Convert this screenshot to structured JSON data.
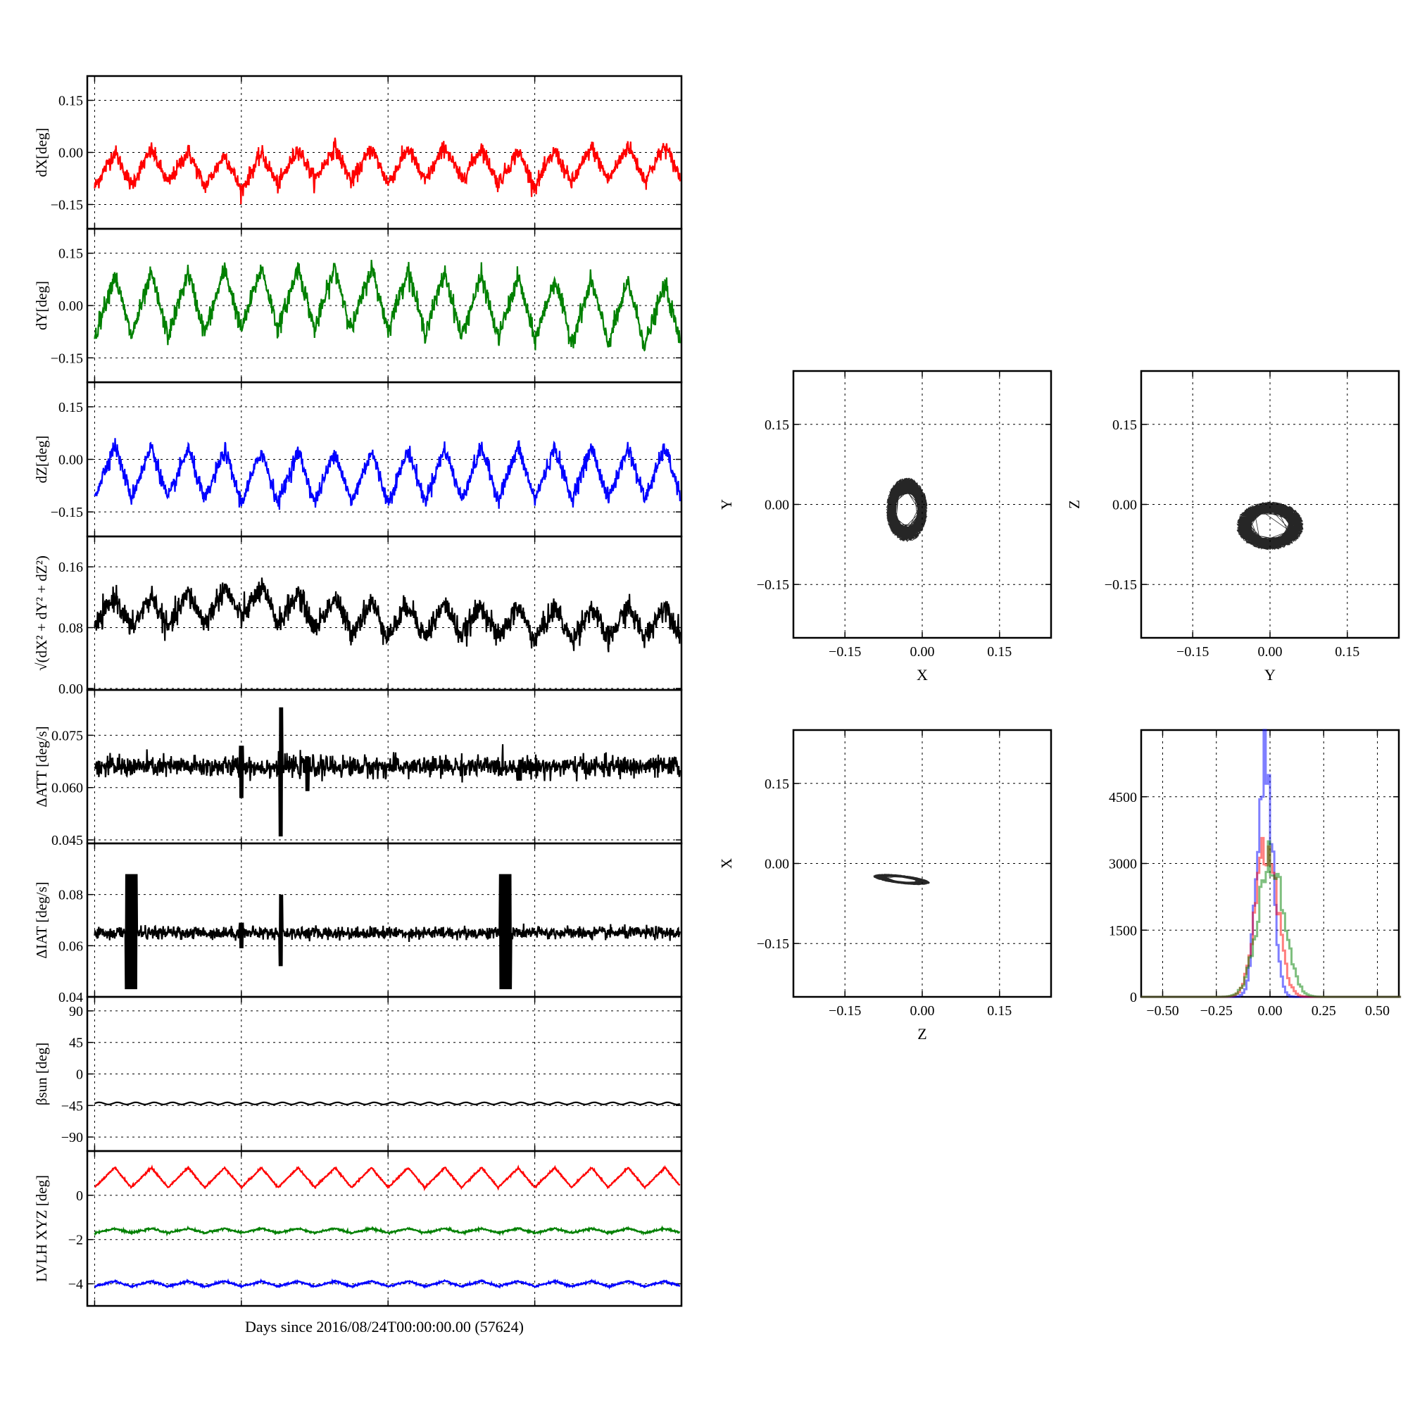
{
  "colors": {
    "red": "#ff0000",
    "green": "#008000",
    "blue": "#0000ff",
    "black": "#000000"
  },
  "figure": {
    "xlabel": "Days since 2016/08/24T00:00:00.00 (57624)"
  },
  "chart_data": [
    {
      "id": "dx",
      "type": "line",
      "ylabel": "dX[deg]",
      "ylim": [
        -0.22,
        0.22
      ],
      "yticks": [
        -0.15,
        0.0,
        0.15
      ],
      "ytick_labels": [
        "−0.15",
        "0.00",
        "0.15"
      ],
      "xlim": [
        -0.05,
        4.0
      ],
      "grid": true,
      "series": [
        {
          "color": "#ff0000",
          "period": 0.25,
          "amp": 0.05,
          "offset": -0.045,
          "noise": 0.012,
          "x": [
            0.0,
            0.5,
            1.0,
            1.5,
            2.0,
            2.5,
            3.0,
            3.5,
            4.0
          ],
          "y": [
            -0.05,
            -0.04,
            -0.06,
            -0.03,
            -0.04,
            -0.03,
            -0.05,
            -0.03,
            -0.03
          ]
        }
      ]
    },
    {
      "id": "dy",
      "type": "line",
      "ylabel": "dY[deg]",
      "ylim": [
        -0.22,
        0.22
      ],
      "yticks": [
        -0.15,
        0.0,
        0.15
      ],
      "ytick_labels": [
        "−0.15",
        "0.00",
        "0.15"
      ],
      "xlim": [
        -0.05,
        4.0
      ],
      "grid": true,
      "series": [
        {
          "color": "#008000",
          "period": 0.25,
          "amp": 0.09,
          "offset": 0.0,
          "noise": 0.014,
          "x": [
            0.0,
            0.5,
            1.0,
            1.5,
            2.0,
            2.5,
            3.0,
            3.5,
            4.0
          ],
          "y": [
            0.0,
            0.0,
            0.02,
            0.02,
            0.02,
            0.0,
            -0.01,
            -0.02,
            -0.03
          ]
        }
      ]
    },
    {
      "id": "dz",
      "type": "line",
      "ylabel": "dZ[deg]",
      "ylim": [
        -0.22,
        0.22
      ],
      "yticks": [
        -0.15,
        0.0,
        0.15
      ],
      "ytick_labels": [
        "−0.15",
        "0.00",
        "0.15"
      ],
      "xlim": [
        -0.05,
        4.0
      ],
      "grid": true,
      "series": [
        {
          "color": "#0000ff",
          "period": 0.25,
          "amp": 0.075,
          "offset": -0.04,
          "noise": 0.012,
          "x": [
            0.0,
            0.5,
            1.0,
            1.5,
            2.0,
            2.5,
            3.0,
            3.5,
            4.0
          ],
          "y": [
            -0.03,
            -0.04,
            -0.05,
            -0.05,
            -0.05,
            -0.04,
            -0.04,
            -0.04,
            -0.04
          ]
        }
      ]
    },
    {
      "id": "dr",
      "type": "line",
      "ylabel": "√(dX² + dY² + dZ²)",
      "ylim": [
        -0.002,
        0.2
      ],
      "yticks": [
        0.0,
        0.08,
        0.16
      ],
      "ytick_labels": [
        "0.00",
        "0.08",
        "0.16"
      ],
      "xlim": [
        -0.05,
        4.0
      ],
      "grid": true,
      "series": [
        {
          "color": "#000000",
          "period": 0.25,
          "amp": 0.022,
          "offset": 0.095,
          "noise": 0.008,
          "x": [
            0.0,
            0.5,
            1.0,
            1.5,
            2.0,
            2.5,
            3.0,
            3.5,
            4.0
          ],
          "y": [
            0.1,
            0.1,
            0.115,
            0.1,
            0.09,
            0.09,
            0.085,
            0.085,
            0.09
          ]
        }
      ]
    },
    {
      "id": "datt",
      "type": "line",
      "ylabel": "ΔATT [deg/s]",
      "ylim": [
        0.044,
        0.088
      ],
      "yticks": [
        0.045,
        0.06,
        0.075
      ],
      "ytick_labels": [
        "0.045",
        "0.060",
        "0.075"
      ],
      "xlim": [
        -0.05,
        4.0
      ],
      "grid": true,
      "series": [
        {
          "color": "#000000",
          "base": 0.066,
          "noise": 0.0015,
          "spikes": [
            {
              "x": 1.0,
              "min": 0.057,
              "max": 0.072
            },
            {
              "x": 1.27,
              "min": 0.046,
              "max": 0.083
            },
            {
              "x": 1.45,
              "min": 0.059,
              "max": 0.069
            },
            {
              "x": 2.9,
              "min": 0.062,
              "max": 0.068
            }
          ]
        }
      ]
    },
    {
      "id": "diat",
      "type": "line",
      "ylabel": "ΔIAT [deg/s]",
      "ylim": [
        0.04,
        0.1
      ],
      "yticks": [
        0.04,
        0.06,
        0.08
      ],
      "ytick_labels": [
        "0.04",
        "0.06",
        "0.08"
      ],
      "xlim": [
        -0.05,
        4.0
      ],
      "grid": true,
      "series": [
        {
          "color": "#000000",
          "base": 0.065,
          "noise": 0.0012,
          "bursts": [
            {
              "x0": 0.21,
              "x1": 0.29,
              "min": 0.043,
              "max": 0.088
            },
            {
              "x0": 2.76,
              "x1": 2.84,
              "min": 0.043,
              "max": 0.088
            }
          ],
          "spikes": [
            {
              "x": 1.0,
              "min": 0.059,
              "max": 0.069
            },
            {
              "x": 1.27,
              "min": 0.052,
              "max": 0.08
            }
          ]
        }
      ]
    },
    {
      "id": "beta",
      "type": "line",
      "ylabel": "βsun [deg]",
      "ylim": [
        -110,
        110
      ],
      "yticks": [
        -90,
        -45,
        0,
        45,
        90
      ],
      "ytick_labels": [
        "−90",
        "−45",
        "0",
        "45",
        "90"
      ],
      "xlim": [
        -0.05,
        4.0
      ],
      "grid": true,
      "series": [
        {
          "color": "#000000",
          "period": 0.125,
          "amp": 1.5,
          "offset": -42,
          "noise": 0
        }
      ]
    },
    {
      "id": "lvlh",
      "type": "line",
      "ylabel": "LVLH XYZ [deg]",
      "ylim": [
        -5.0,
        2.0
      ],
      "yticks": [
        -4,
        -2,
        0
      ],
      "ytick_labels": [
        "−4",
        "−2",
        "0"
      ],
      "xlim": [
        -0.05,
        4.0
      ],
      "grid": true,
      "series": [
        {
          "color": "#ff0000",
          "period": 0.25,
          "amp": 0.45,
          "offset": 0.8,
          "noise": 0.02
        },
        {
          "color": "#008000",
          "period": 0.25,
          "amp": 0.1,
          "offset": -1.6,
          "noise": 0.02
        },
        {
          "color": "#0000ff",
          "period": 0.25,
          "amp": 0.12,
          "offset": -4.0,
          "noise": 0.02
        }
      ]
    },
    {
      "id": "xy",
      "type": "scatter",
      "xlabel": "X",
      "ylabel": "Y",
      "xlim": [
        -0.25,
        0.25
      ],
      "ylim": [
        -0.25,
        0.25
      ],
      "ticks": [
        -0.15,
        0.0,
        0.15
      ],
      "tick_labels": [
        "−0.15",
        "0.00",
        "0.15"
      ],
      "grid": true,
      "center": [
        -0.03,
        -0.01
      ],
      "spread": [
        0.04,
        0.06
      ],
      "corr": 0.0
    },
    {
      "id": "yz",
      "type": "scatter",
      "xlabel": "Y",
      "ylabel": "Z",
      "xlim": [
        -0.25,
        0.25
      ],
      "ylim": [
        -0.25,
        0.25
      ],
      "ticks": [
        -0.15,
        0.0,
        0.15
      ],
      "tick_labels": [
        "−0.15",
        "0.00",
        "0.15"
      ],
      "grid": true,
      "center": [
        0.0,
        -0.04
      ],
      "spread": [
        0.065,
        0.045
      ],
      "corr": 0.0
    },
    {
      "id": "zx",
      "type": "scatter",
      "xlabel": "Z",
      "ylabel": "X",
      "xlim": [
        -0.25,
        0.25
      ],
      "ylim": [
        -0.25,
        0.25
      ],
      "ticks": [
        -0.15,
        0.0,
        0.15
      ],
      "tick_labels": [
        "−0.15",
        "0.00",
        "0.15"
      ],
      "grid": true,
      "center": [
        -0.04,
        -0.03
      ],
      "spread": [
        0.055,
        0.01
      ],
      "corr": -0.6
    },
    {
      "id": "hist",
      "type": "histogram",
      "xlim": [
        -0.6,
        0.6
      ],
      "ylim": [
        0,
        6000
      ],
      "xticks": [
        -0.5,
        -0.25,
        0.0,
        0.25,
        0.5
      ],
      "xtick_labels": [
        "−0.50",
        "−0.25",
        "0.00",
        "0.25",
        "0.50"
      ],
      "yticks": [
        0,
        1500,
        3000,
        4500
      ],
      "ytick_labels": [
        "0",
        "1500",
        "3000",
        "4500"
      ],
      "grid": true,
      "series": [
        {
          "color": "#0000ff",
          "mean": -0.03,
          "sd": 0.035,
          "peak": 5500
        },
        {
          "color": "#ff0000",
          "mean": -0.02,
          "sd": 0.05,
          "peak": 3400
        },
        {
          "color": "#008000",
          "mean": 0.0,
          "sd": 0.06,
          "peak": 3100
        }
      ]
    }
  ]
}
